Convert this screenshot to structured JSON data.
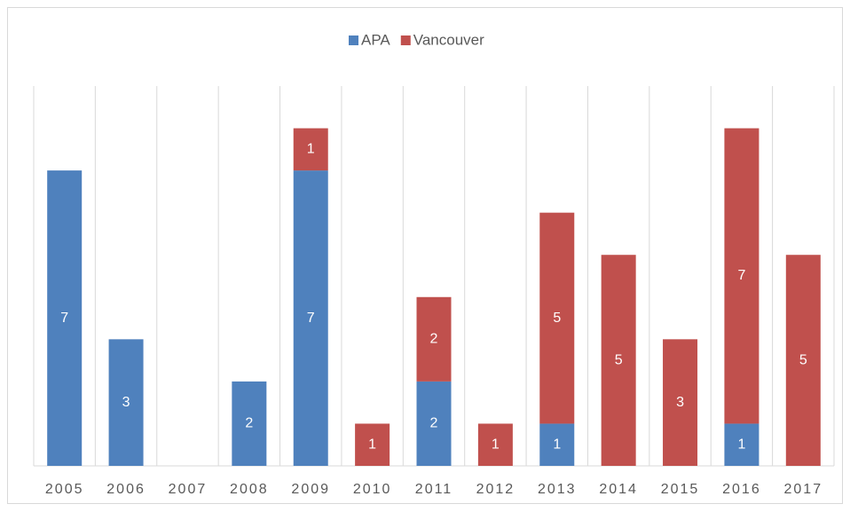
{
  "chart_data": {
    "type": "stacked_bar",
    "categories": [
      "2005",
      "2006",
      "2007",
      "2008",
      "2009",
      "2010",
      "2011",
      "2012",
      "2013",
      "2014",
      "2015",
      "2016",
      "2017"
    ],
    "series": [
      {
        "name": "APA",
        "color": "#4f81bd",
        "values": [
          7,
          3,
          0,
          2,
          7,
          0,
          2,
          0,
          1,
          0,
          0,
          1,
          0
        ]
      },
      {
        "name": "Vancouver",
        "color": "#c0504d",
        "values": [
          0,
          0,
          0,
          0,
          1,
          1,
          2,
          1,
          5,
          5,
          3,
          7,
          5
        ]
      }
    ],
    "ylim": [
      0,
      9
    ],
    "grid": true,
    "legend": "top"
  }
}
